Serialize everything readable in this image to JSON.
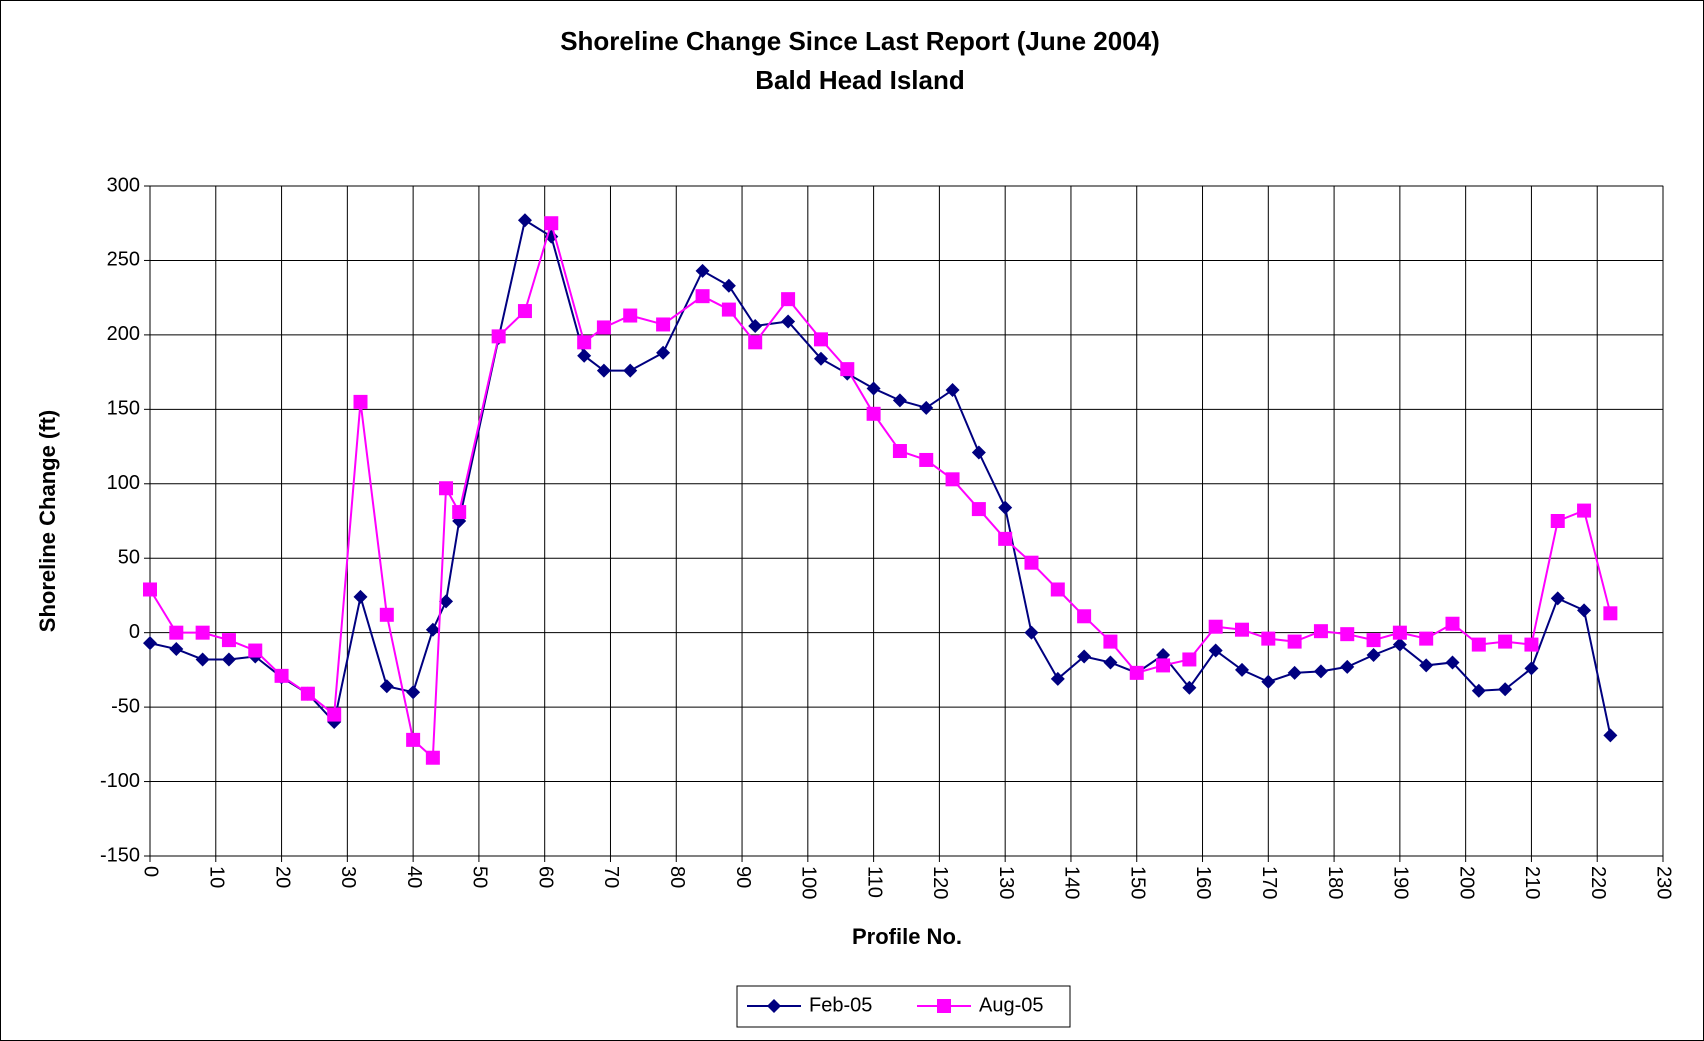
{
  "chart_data": {
    "type": "line",
    "title": "Shoreline Change Since Last Report (June 2004)",
    "subtitle": "Bald Head Island",
    "x_label": "Profile No.",
    "y_label": "Shoreline Change (ft)",
    "x": [
      0,
      4,
      8,
      12,
      16,
      20,
      24,
      28,
      32,
      36,
      40,
      43,
      45,
      47,
      53,
      57,
      61,
      66,
      69,
      73,
      78,
      84,
      88,
      92,
      97,
      102,
      106,
      110,
      114,
      118,
      122,
      126,
      130,
      134,
      138,
      142,
      146,
      150,
      154,
      158,
      162,
      166,
      170,
      174,
      178,
      182,
      186,
      190,
      194,
      198,
      202,
      206,
      210,
      214,
      218,
      222
    ],
    "series": [
      {
        "name": "Feb-05",
        "color": "#000080",
        "marker": "diamond",
        "values": [
          -7,
          -11,
          -18,
          -18,
          -16,
          -30,
          -41,
          -60,
          24,
          -36,
          -40,
          2,
          21,
          75,
          198,
          277,
          266,
          186,
          176,
          176,
          188,
          243,
          233,
          206,
          209,
          184,
          174,
          164,
          156,
          151,
          163,
          121,
          84,
          0,
          -31,
          -16,
          -20,
          -27,
          -15,
          -37,
          -12,
          -25,
          -33,
          -27,
          -26,
          -23,
          -15,
          -8,
          -22,
          -20,
          -39,
          -38,
          -24,
          23,
          15,
          -69
        ]
      },
      {
        "name": "Aug-05",
        "color": "#FF00FF",
        "marker": "square",
        "values": [
          29,
          0,
          0,
          -5,
          -12,
          -29,
          -41,
          -55,
          155,
          12,
          -72,
          -84,
          97,
          81,
          199,
          216,
          275,
          195,
          205,
          213,
          207,
          226,
          217,
          195,
          224,
          197,
          177,
          147,
          122,
          116,
          103,
          83,
          63,
          47,
          29,
          11,
          -6,
          -27,
          -22,
          -18,
          4,
          2,
          -4,
          -6,
          1,
          -1,
          -5,
          0,
          -4,
          6,
          -8,
          -6,
          -8,
          75,
          82,
          13
        ]
      }
    ],
    "xlim": [
      0,
      230
    ],
    "xticks": [
      0,
      10,
      20,
      30,
      40,
      50,
      60,
      70,
      80,
      90,
      100,
      110,
      120,
      130,
      140,
      150,
      160,
      170,
      180,
      190,
      200,
      210,
      220,
      230
    ],
    "ylim": [
      -150,
      300
    ],
    "yticks": [
      -150,
      -100,
      -50,
      0,
      50,
      100,
      150,
      200,
      250,
      300
    ],
    "grid": true,
    "legend": "bottom"
  }
}
